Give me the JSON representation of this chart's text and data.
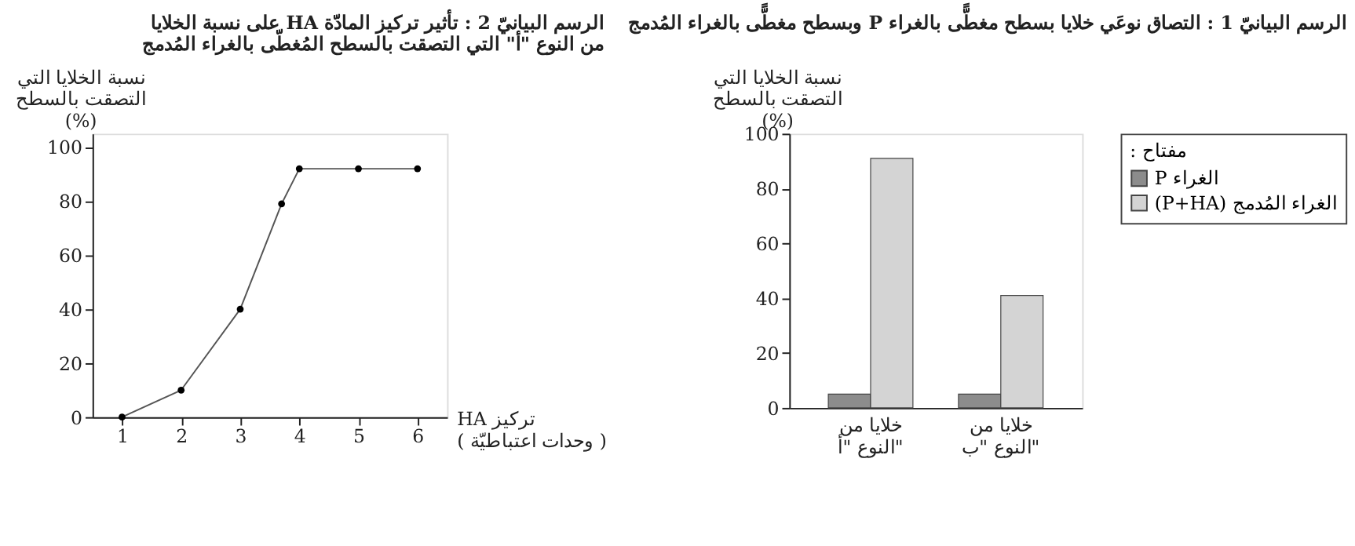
{
  "chart_data": [
    {
      "type": "line",
      "title": "الرسم البيانيّ 2 : تأثير تركيز المادّة HA على نسبة الخلايا\nمن النوع \"أ\" التي التصقت بالسطح المُغطّى بالغراء المُدمج",
      "xlabel": "تركيز HA\n( وحدات اعتباطيّة )",
      "ylabel": "نسبة الخلايا التي\nالتصقت بالسطح\n(%)",
      "x": [
        1,
        2,
        3,
        3.7,
        4,
        5,
        6
      ],
      "series": [
        {
          "color": "#555555",
          "values": [
            0,
            10,
            40,
            79,
            92,
            92,
            92
          ]
        }
      ],
      "xlim": [
        0.5,
        6.5
      ],
      "xticks": [
        1,
        2,
        3,
        4,
        5,
        6
      ],
      "ylim": [
        0,
        105
      ],
      "yticks": [
        0,
        20,
        40,
        60,
        80,
        100
      ],
      "grid": false,
      "marker": "circle",
      "line_style": "solid",
      "legend": false
    },
    {
      "type": "bar",
      "title": "الرسم البيانيّ 1 : التصاق نوعَي خلايا بسطح مغطًّى بالغراء P وبسطح مغطًّى بالغراء المُدمج",
      "ylabel": "نسبة الخلايا التي\nالتصقت بالسطح\n(%)",
      "legend_title": "مفتاح :",
      "categories": [
        "خلايا من\nالنوع \"أ\"",
        "خلايا من\nالنوع \"ب\""
      ],
      "series": [
        {
          "name": "الغراء P",
          "color": "#8c8c8c",
          "values": [
            5,
            5
          ]
        },
        {
          "name": "الغراء المُدمج (P+HA)",
          "color": "#d4d4d4",
          "values": [
            91,
            41
          ]
        }
      ],
      "ylim": [
        0,
        100
      ],
      "yticks": [
        0,
        20,
        40,
        60,
        80,
        100
      ],
      "grid": false,
      "legend": "top right"
    }
  ]
}
